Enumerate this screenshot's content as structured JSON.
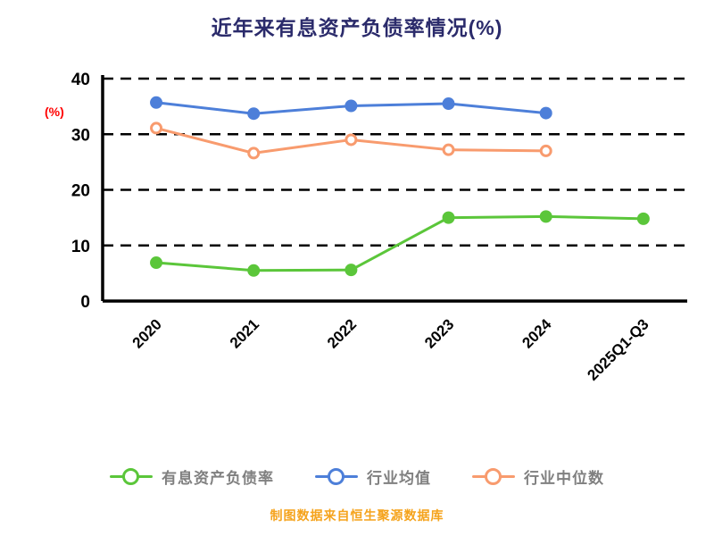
{
  "title": "近年来有息资产负债率情况(%)",
  "footer": "制图数据来自恒生聚源数据库",
  "colors": {
    "title": "#2b2b6b",
    "axis": "#000000",
    "tick_text": "#000000",
    "ylabel": "#ff0000",
    "legend_text": "#808080",
    "footer_text": "#f5a31c",
    "series_green": "#5bc63a",
    "series_blue": "#4d7fd9",
    "series_orange": "#f89b6e",
    "background": "#ffffff"
  },
  "chart_data": {
    "type": "line",
    "title": "近年来有息资产负债率情况(%)",
    "categories": [
      "2020",
      "2021",
      "2022",
      "2023",
      "2024",
      "2025Q1-Q3"
    ],
    "series": [
      {
        "key": "interest-bearing-debt-ratio",
        "name": "有息资产负债率",
        "color": "#5bc63a",
        "marker": "solid",
        "values": [
          6.9,
          5.5,
          5.6,
          15.0,
          15.2,
          14.8
        ]
      },
      {
        "key": "industry-mean",
        "name": "行业均值",
        "color": "#4d7fd9",
        "marker": "solid",
        "values": [
          35.7,
          33.7,
          35.1,
          35.5,
          33.8,
          null
        ]
      },
      {
        "key": "industry-median",
        "name": "行业中位数",
        "color": "#f89b6e",
        "marker": "hollow",
        "values": [
          31.1,
          26.6,
          29.0,
          27.2,
          27.0,
          null
        ]
      }
    ],
    "xlabel": "",
    "ylabel": "(%)",
    "ylim": [
      0,
      40
    ],
    "yticks": [
      0,
      10,
      20,
      30,
      40
    ],
    "grid": "horizontal-dashed",
    "legend_position": "bottom"
  }
}
